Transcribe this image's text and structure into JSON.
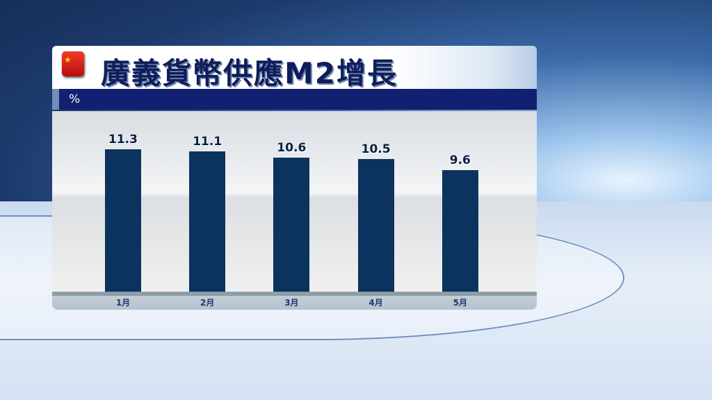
{
  "title": "廣義貨幣供應M2增長",
  "flag_icon": "china-flag",
  "chart_data": {
    "type": "bar",
    "title": "廣義貨幣供應M2增長",
    "ylabel": "%",
    "categories": [
      "1月",
      "2月",
      "3月",
      "4月",
      "5月"
    ],
    "values": [
      11.3,
      11.1,
      10.6,
      10.5,
      9.6
    ],
    "value_labels": [
      "11.3",
      "11.1",
      "10.6",
      "10.5",
      "9.6"
    ],
    "ylim": [
      0,
      14.3
    ],
    "grid": false,
    "bar_color": "#0b335e"
  }
}
